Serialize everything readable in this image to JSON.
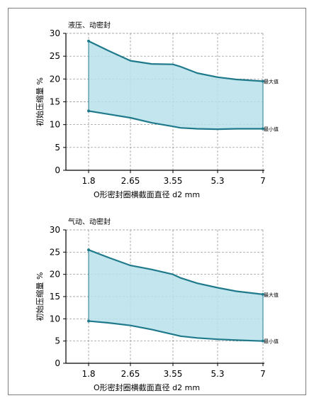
{
  "chart_data": [
    {
      "type": "area",
      "title": "液压、动密封",
      "xlabel": "O形密封圈横截面直径 d2 mm",
      "ylabel": "初始压缩量 %",
      "categories": [
        "1.8",
        "2.65",
        "3.55",
        "5.3",
        "7"
      ],
      "ylim": [
        0,
        30
      ],
      "yticks": [
        0,
        5,
        10,
        15,
        20,
        25,
        30
      ],
      "grid": "dashed",
      "x": [
        1.8,
        2.2,
        2.65,
        3.1,
        3.55,
        3.85,
        4.5,
        5.3,
        6.0,
        7.0
      ],
      "series": [
        {
          "name": "最大值",
          "values": [
            28.3,
            26.2,
            24.0,
            23.3,
            23.2,
            22.7,
            21.3,
            20.4,
            19.9,
            19.5
          ]
        },
        {
          "name": "最小值",
          "values": [
            13.0,
            12.3,
            11.5,
            10.4,
            9.6,
            9.3,
            9.1,
            9.0,
            9.1,
            9.1
          ]
        }
      ],
      "fill_color": "#b9e1ea",
      "line_color": "#1f7a8c"
    },
    {
      "type": "area",
      "title": "气动、动密封",
      "xlabel": "O形密封圈横截面直径 d2 mm",
      "ylabel": "初始压缩量 %",
      "categories": [
        "1.8",
        "2.65",
        "3.55",
        "5.3",
        "7"
      ],
      "ylim": [
        0,
        30
      ],
      "yticks": [
        0,
        5,
        10,
        15,
        20,
        25,
        30
      ],
      "grid": "dashed",
      "x": [
        1.8,
        2.2,
        2.65,
        3.1,
        3.55,
        3.85,
        4.5,
        5.3,
        6.0,
        7.0
      ],
      "series": [
        {
          "name": "最大值",
          "values": [
            25.5,
            23.8,
            22.0,
            21.1,
            20.0,
            19.2,
            18.0,
            17.0,
            16.2,
            15.5
          ]
        },
        {
          "name": "最小值",
          "values": [
            9.5,
            9.1,
            8.5,
            7.6,
            6.5,
            6.1,
            5.7,
            5.4,
            5.2,
            5.0
          ]
        }
      ],
      "fill_color": "#b9e1ea",
      "line_color": "#1f7a8c"
    }
  ]
}
